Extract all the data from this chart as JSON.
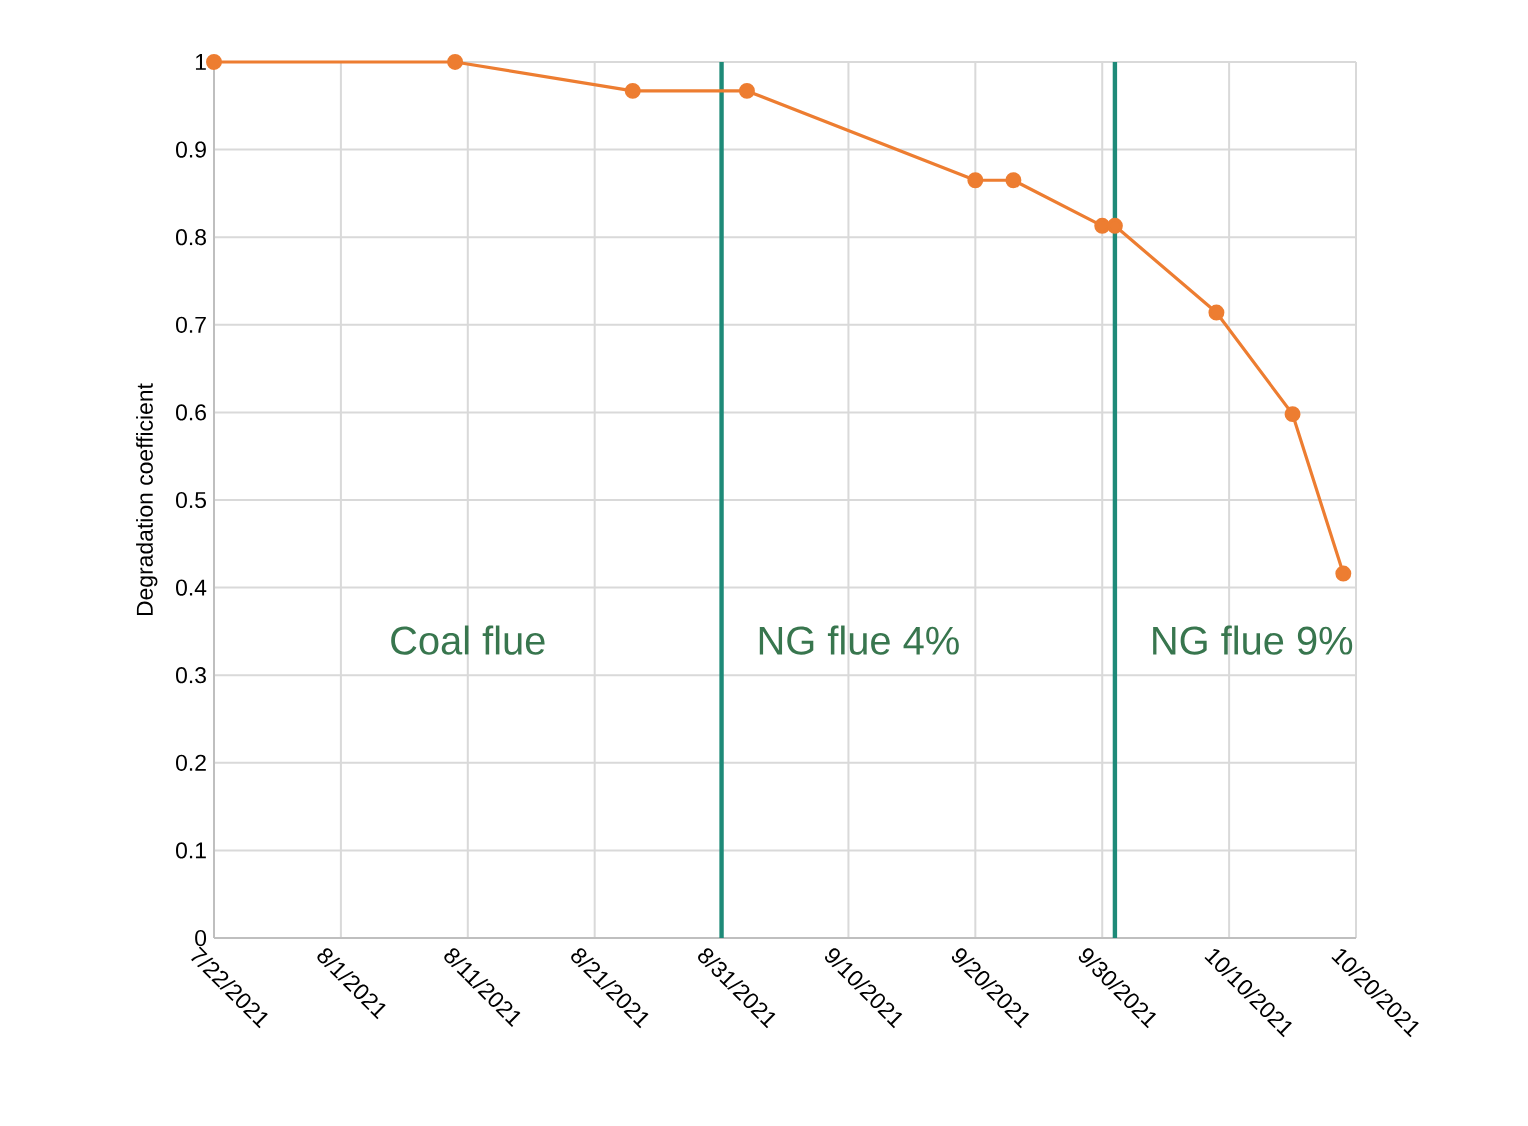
{
  "chart_data": {
    "type": "line",
    "ylabel": "Degradation coefficient",
    "series": [
      {
        "color": "#ed7d31",
        "x": [
          "2021-07-22",
          "2021-08-10",
          "2021-08-24",
          "2021-09-02",
          "2021-09-20",
          "2021-09-23",
          "2021-09-30",
          "2021-10-01",
          "2021-10-09",
          "2021-10-15",
          "2021-10-19"
        ],
        "values": [
          1,
          1,
          0.967,
          0.967,
          0.865,
          0.865,
          0.813,
          0.813,
          0.714,
          0.598,
          0.416
        ]
      }
    ],
    "xlim": [
      "2021-07-22",
      "2021-10-20"
    ],
    "xticks": [
      {
        "value": "2021-07-22",
        "label": "7/22/2021"
      },
      {
        "value": "2021-08-01",
        "label": "8/1/2021"
      },
      {
        "value": "2021-08-11",
        "label": "8/11/2021"
      },
      {
        "value": "2021-08-21",
        "label": "8/21/2021"
      },
      {
        "value": "2021-08-31",
        "label": "8/31/2021"
      },
      {
        "value": "2021-09-10",
        "label": "9/10/2021"
      },
      {
        "value": "2021-09-20",
        "label": "9/20/2021"
      },
      {
        "value": "2021-09-30",
        "label": "9/30/2021"
      },
      {
        "value": "2021-10-10",
        "label": "10/10/2021"
      },
      {
        "value": "2021-10-20",
        "label": "10/20/2021"
      }
    ],
    "ylim": [
      0,
      1
    ],
    "yticks": [
      0,
      0.1,
      0.2,
      0.3,
      0.4,
      0.5,
      0.6,
      0.7,
      0.8,
      0.9,
      1
    ],
    "ref_lines": [
      {
        "axis": "x",
        "value": "2021-08-31",
        "color": "#1e8a78"
      },
      {
        "axis": "x",
        "value": "2021-10-01",
        "color": "#1e8a78"
      }
    ],
    "annotations": [
      "Coal flue",
      "NG flue 4%",
      "NG flue 9%"
    ],
    "grid": true,
    "marker": "circle",
    "line_style": "solid"
  }
}
